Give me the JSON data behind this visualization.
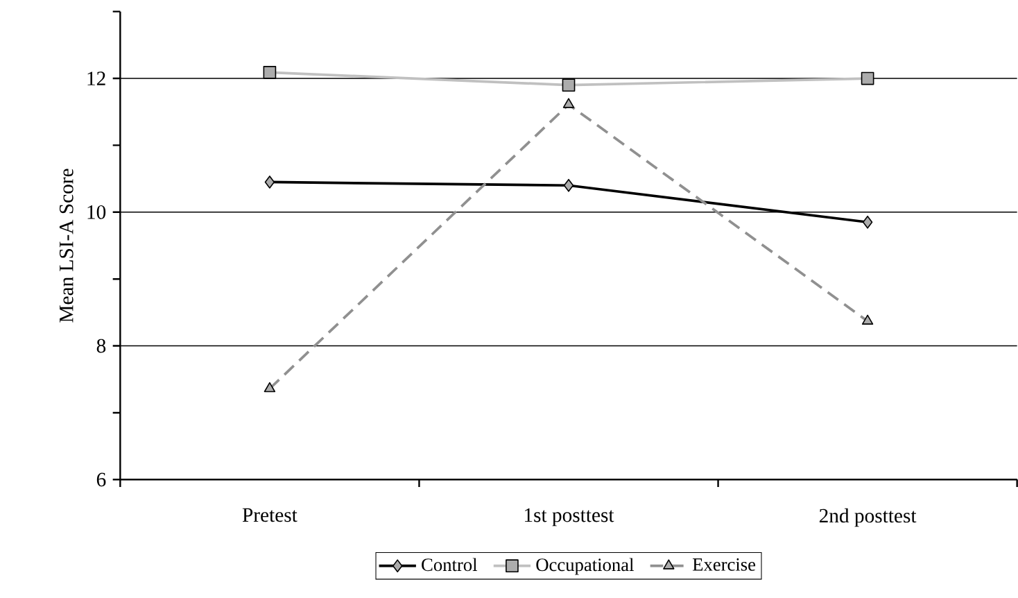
{
  "chart_data": {
    "type": "line",
    "ylabel": "Mean LSI-A Score",
    "categories": [
      "Pretest",
      "1st posttest",
      "2nd posttest"
    ],
    "series": [
      {
        "name": "Control",
        "color": "#000000",
        "marker": "diamond",
        "line_style": "solid",
        "values": [
          10.45,
          10.4,
          9.85
        ]
      },
      {
        "name": "Occupational",
        "color": "#c0c0c0",
        "marker": "square",
        "line_style": "solid",
        "values": [
          12.09,
          11.9,
          12.0
        ]
      },
      {
        "name": "Exercise",
        "color": "#909090",
        "marker": "triangle",
        "line_style": "dashed",
        "values": [
          7.36,
          11.61,
          8.37
        ]
      }
    ],
    "ylim": [
      6,
      13
    ],
    "yticks": [
      6,
      {
        "value": 7,
        "label": null
      },
      8,
      {
        "value": 9,
        "label": null
      },
      10,
      {
        "value": 11,
        "label": null
      },
      12,
      {
        "value": 13,
        "label": null
      }
    ],
    "grid": "y",
    "legend": "bottom"
  }
}
